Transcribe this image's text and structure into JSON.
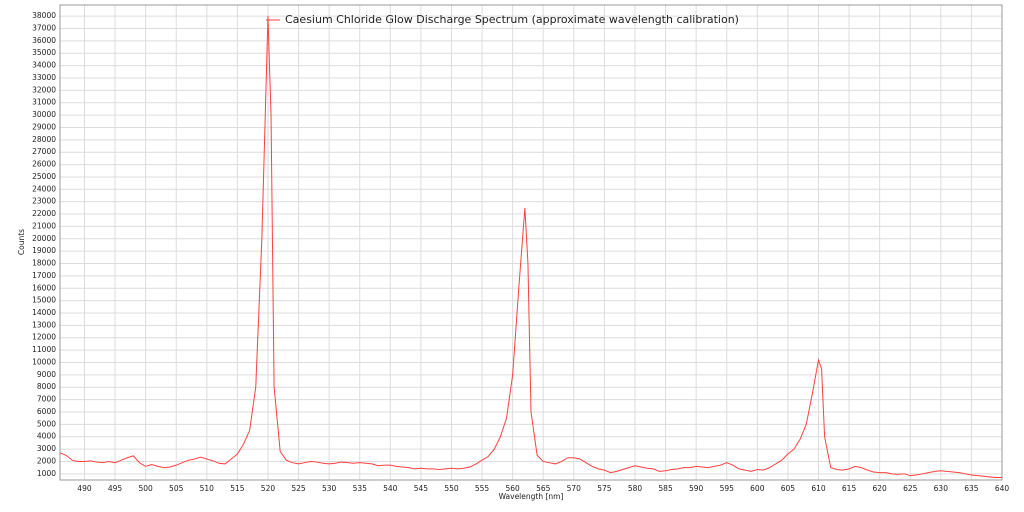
{
  "chart_data": {
    "type": "line",
    "legend_title": "Caesium Chloride Glow Discharge Spectrum (approximate wavelength calibration)",
    "xlabel": "Wavelength [nm]",
    "ylabel": "Counts",
    "x": [
      486,
      487,
      488,
      489,
      490,
      491,
      492,
      493,
      494,
      495,
      496,
      497,
      498,
      499,
      500,
      501,
      502,
      503,
      504,
      505,
      506,
      507,
      508,
      509,
      510,
      511,
      512,
      513,
      514,
      515,
      516,
      517,
      518,
      519,
      520,
      520.5,
      521,
      522,
      523,
      524,
      525,
      526,
      527,
      528,
      529,
      530,
      531,
      532,
      533,
      534,
      535,
      536,
      537,
      538,
      539,
      540,
      541,
      542,
      543,
      544,
      545,
      546,
      547,
      548,
      549,
      550,
      551,
      552,
      553,
      554,
      555,
      556,
      557,
      558,
      559,
      560,
      561,
      562,
      562.5,
      563,
      564,
      565,
      566,
      567,
      568,
      569,
      570,
      571,
      572,
      573,
      574,
      575,
      576,
      577,
      578,
      579,
      580,
      581,
      582,
      583,
      584,
      585,
      586,
      587,
      588,
      589,
      590,
      591,
      592,
      593,
      594,
      595,
      596,
      597,
      598,
      599,
      600,
      601,
      602,
      603,
      604,
      605,
      606,
      607,
      608,
      609,
      610,
      610.5,
      611,
      612,
      613,
      614,
      615,
      616,
      617,
      618,
      619,
      620,
      621,
      622,
      623,
      624,
      625,
      626,
      627,
      628,
      629,
      630,
      631,
      632,
      633,
      634,
      635,
      636,
      637,
      638,
      639,
      640
    ],
    "series": [
      {
        "name": "Caesium Chloride Glow Discharge Spectrum (approximate wavelength calibration)",
        "color": "#ff4040",
        "values": [
          2700,
          2500,
          2100,
          2000,
          2000,
          2050,
          1950,
          1900,
          2000,
          1900,
          2100,
          2300,
          2450,
          1900,
          1600,
          1750,
          1600,
          1500,
          1550,
          1700,
          1900,
          2100,
          2200,
          2350,
          2200,
          2050,
          1850,
          1800,
          2200,
          2600,
          3400,
          4500,
          8000,
          20000,
          38000,
          30000,
          8000,
          2800,
          2100,
          1900,
          1800,
          1900,
          2000,
          1950,
          1850,
          1800,
          1850,
          1950,
          1900,
          1850,
          1900,
          1850,
          1800,
          1650,
          1700,
          1700,
          1600,
          1550,
          1500,
          1400,
          1450,
          1400,
          1400,
          1350,
          1400,
          1450,
          1400,
          1450,
          1550,
          1800,
          2100,
          2400,
          3000,
          4000,
          5500,
          9000,
          16000,
          22500,
          18000,
          6000,
          2500,
          2000,
          1900,
          1800,
          2000,
          2300,
          2300,
          2200,
          1900,
          1600,
          1400,
          1300,
          1100,
          1200,
          1350,
          1500,
          1650,
          1550,
          1450,
          1400,
          1200,
          1250,
          1350,
          1400,
          1500,
          1500,
          1600,
          1550,
          1500,
          1600,
          1700,
          1900,
          1700,
          1400,
          1300,
          1200,
          1350,
          1300,
          1500,
          1800,
          2100,
          2600,
          3000,
          3800,
          5000,
          7500,
          10200,
          9500,
          4000,
          1500,
          1350,
          1300,
          1400,
          1600,
          1500,
          1300,
          1150,
          1100,
          1100,
          1000,
          950,
          1000,
          850,
          900,
          1000,
          1100,
          1200,
          1250,
          1200,
          1150,
          1100,
          1000,
          900,
          850,
          800,
          750,
          700,
          700
        ]
      }
    ],
    "xlim": [
      486,
      640
    ],
    "ylim": [
      500,
      38900
    ],
    "xticks": [
      490,
      495,
      500,
      505,
      510,
      515,
      520,
      525,
      530,
      535,
      540,
      545,
      550,
      555,
      560,
      565,
      570,
      575,
      580,
      585,
      590,
      595,
      600,
      605,
      610,
      615,
      620,
      625,
      630,
      635,
      640
    ],
    "yticks": [
      1000,
      2000,
      3000,
      4000,
      5000,
      6000,
      7000,
      8000,
      9000,
      10000,
      11000,
      12000,
      13000,
      14000,
      15000,
      16000,
      17000,
      18000,
      19000,
      20000,
      21000,
      22000,
      23000,
      24000,
      25000,
      26000,
      27000,
      28000,
      29000,
      30000,
      31000,
      32000,
      33000,
      34000,
      35000,
      36000,
      37000,
      38000
    ],
    "grid": true
  }
}
